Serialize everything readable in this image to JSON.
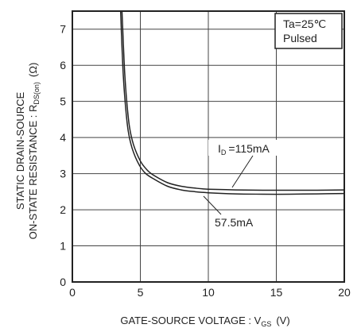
{
  "chart_data": {
    "type": "line",
    "xlabel": "GATE-SOURCE  VOLTAGE : V",
    "xlabel_sub": "GS",
    "xlabel_unit": "(V)",
    "ylabel_line1": "STATIC  DRAIN-SOURCE",
    "ylabel_line2": "ON-STATE  RESISTANCE : R",
    "ylabel_sub": "DS(on)",
    "ylabel_unit": "(Ω)",
    "xlim": [
      0,
      20
    ],
    "ylim": [
      0,
      7.5
    ],
    "x_ticks": [
      0,
      5,
      10,
      15,
      20
    ],
    "y_ticks": [
      0,
      1,
      2,
      3,
      4,
      5,
      6,
      7
    ],
    "grid": true,
    "conditions": [
      "Ta=25℃",
      "Pulsed"
    ],
    "series": [
      {
        "name": "ID=115mA",
        "label_prefix": "I",
        "label_sub": "D",
        "label_text": "=115mA",
        "x": [
          3.65,
          3.75,
          3.85,
          4.0,
          4.2,
          4.5,
          5.0,
          5.5,
          6.0,
          7.0,
          8.0,
          9.0,
          10.0,
          12.0,
          14.0,
          16.0,
          18.0,
          20.0
        ],
        "y": [
          7.5,
          6.6,
          5.8,
          5.0,
          4.3,
          3.8,
          3.35,
          3.1,
          2.95,
          2.75,
          2.65,
          2.6,
          2.57,
          2.55,
          2.54,
          2.54,
          2.54,
          2.55
        ]
      },
      {
        "name": "57.5mA",
        "label_text": "57.5mA",
        "x": [
          3.55,
          3.65,
          3.75,
          3.9,
          4.1,
          4.4,
          4.9,
          5.4,
          6.0,
          7.0,
          8.0,
          9.0,
          10.0,
          12.0,
          14.0,
          16.0,
          18.0,
          20.0
        ],
        "y": [
          7.5,
          6.5,
          5.7,
          4.9,
          4.2,
          3.7,
          3.25,
          3.0,
          2.85,
          2.65,
          2.55,
          2.5,
          2.47,
          2.44,
          2.43,
          2.43,
          2.44,
          2.45
        ]
      }
    ]
  }
}
